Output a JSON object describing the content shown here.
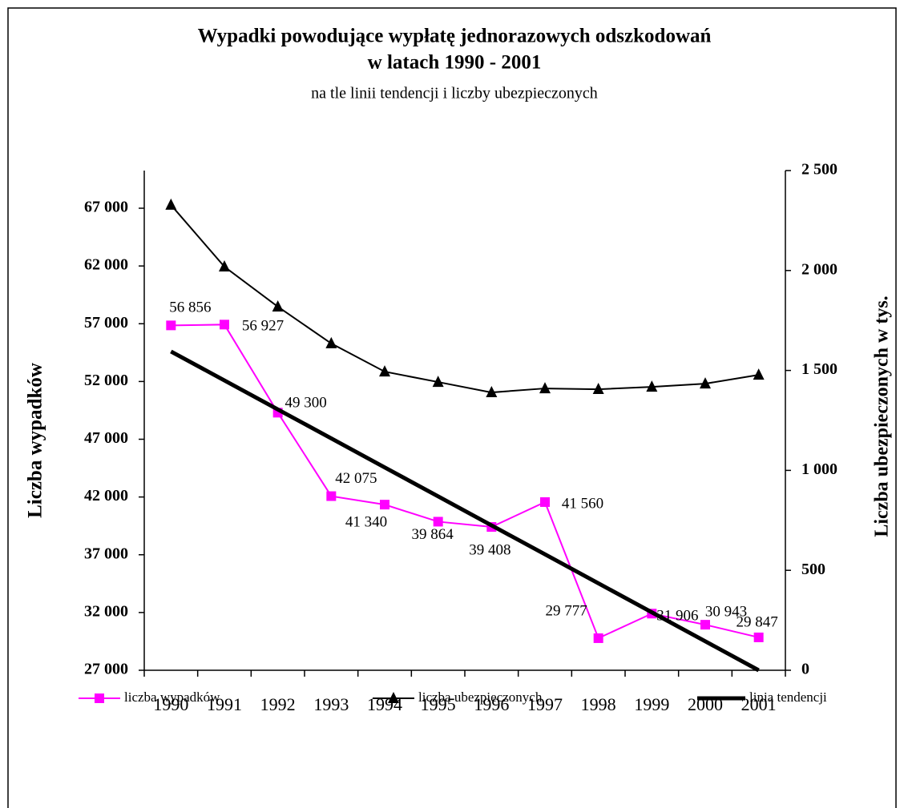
{
  "chart_data": {
    "type": "line",
    "title": [
      "Wypadki powodujące wypłatę jednorazowych odszkodowań",
      "w latach 1990 - 2001"
    ],
    "subtitle": "na tle linii tendencji i liczby ubezpieczonych",
    "y_label": "Liczba wypadków",
    "y2_label": "Liczba ubezpieczonych w tys.",
    "categories": [
      "1990",
      "1991",
      "1992",
      "1993",
      "1994",
      "1995",
      "1996",
      "1997",
      "1998",
      "1999",
      "2000",
      "2001"
    ],
    "series": [
      {
        "name": "liczba wypadków",
        "color": "#ff00ff",
        "marker": "square",
        "values": [
          56856,
          56927,
          49300,
          42075,
          41340,
          39864,
          39408,
          41560,
          29777,
          31906,
          30943,
          29847
        ],
        "value_labels": [
          "56 856",
          "56 927",
          "49 300",
          "42 075",
          "41 340",
          "39 864",
          "39 408",
          "41 560",
          "29 777",
          "31 906",
          "30 943",
          "29 847"
        ]
      },
      {
        "name": "liczba ubezpieczonych",
        "color": "#000000",
        "marker": "triangle",
        "axis": "y2",
        "values": [
          2328,
          2019,
          1819,
          1635,
          1494,
          1442,
          1390,
          1410,
          1406,
          1418,
          1434,
          1478
        ]
      },
      {
        "name": "linia tendencji",
        "color": "#000000",
        "marker": "none",
        "values": [
          54600,
          52091,
          49582,
          47073,
          44564,
          42055,
          39545,
          37036,
          34527,
          32018,
          29509,
          27000
        ]
      }
    ],
    "ylim": [
      27000,
      70260
    ],
    "yticks": [
      {
        "value": 27000,
        "label": "27 000"
      },
      {
        "value": 32000,
        "label": "32 000"
      },
      {
        "value": 37000,
        "label": "37 000"
      },
      {
        "value": 42000,
        "label": "42 000"
      },
      {
        "value": 47000,
        "label": "47 000"
      },
      {
        "value": 52000,
        "label": "52 000"
      },
      {
        "value": 57000,
        "label": "57 000"
      },
      {
        "value": 62000,
        "label": "62 000"
      },
      {
        "value": 67000,
        "label": "67 000"
      }
    ],
    "y2lim": [
      0,
      2500
    ],
    "y2ticks": [
      0,
      500,
      {
        "value": 1000,
        "label": "1 000"
      },
      {
        "value": 1500,
        "label": "1 500"
      },
      {
        "value": 2000,
        "label": "2 000"
      },
      {
        "value": 2500,
        "label": "2 500"
      }
    ],
    "grid": false,
    "legend": "bottom"
  }
}
